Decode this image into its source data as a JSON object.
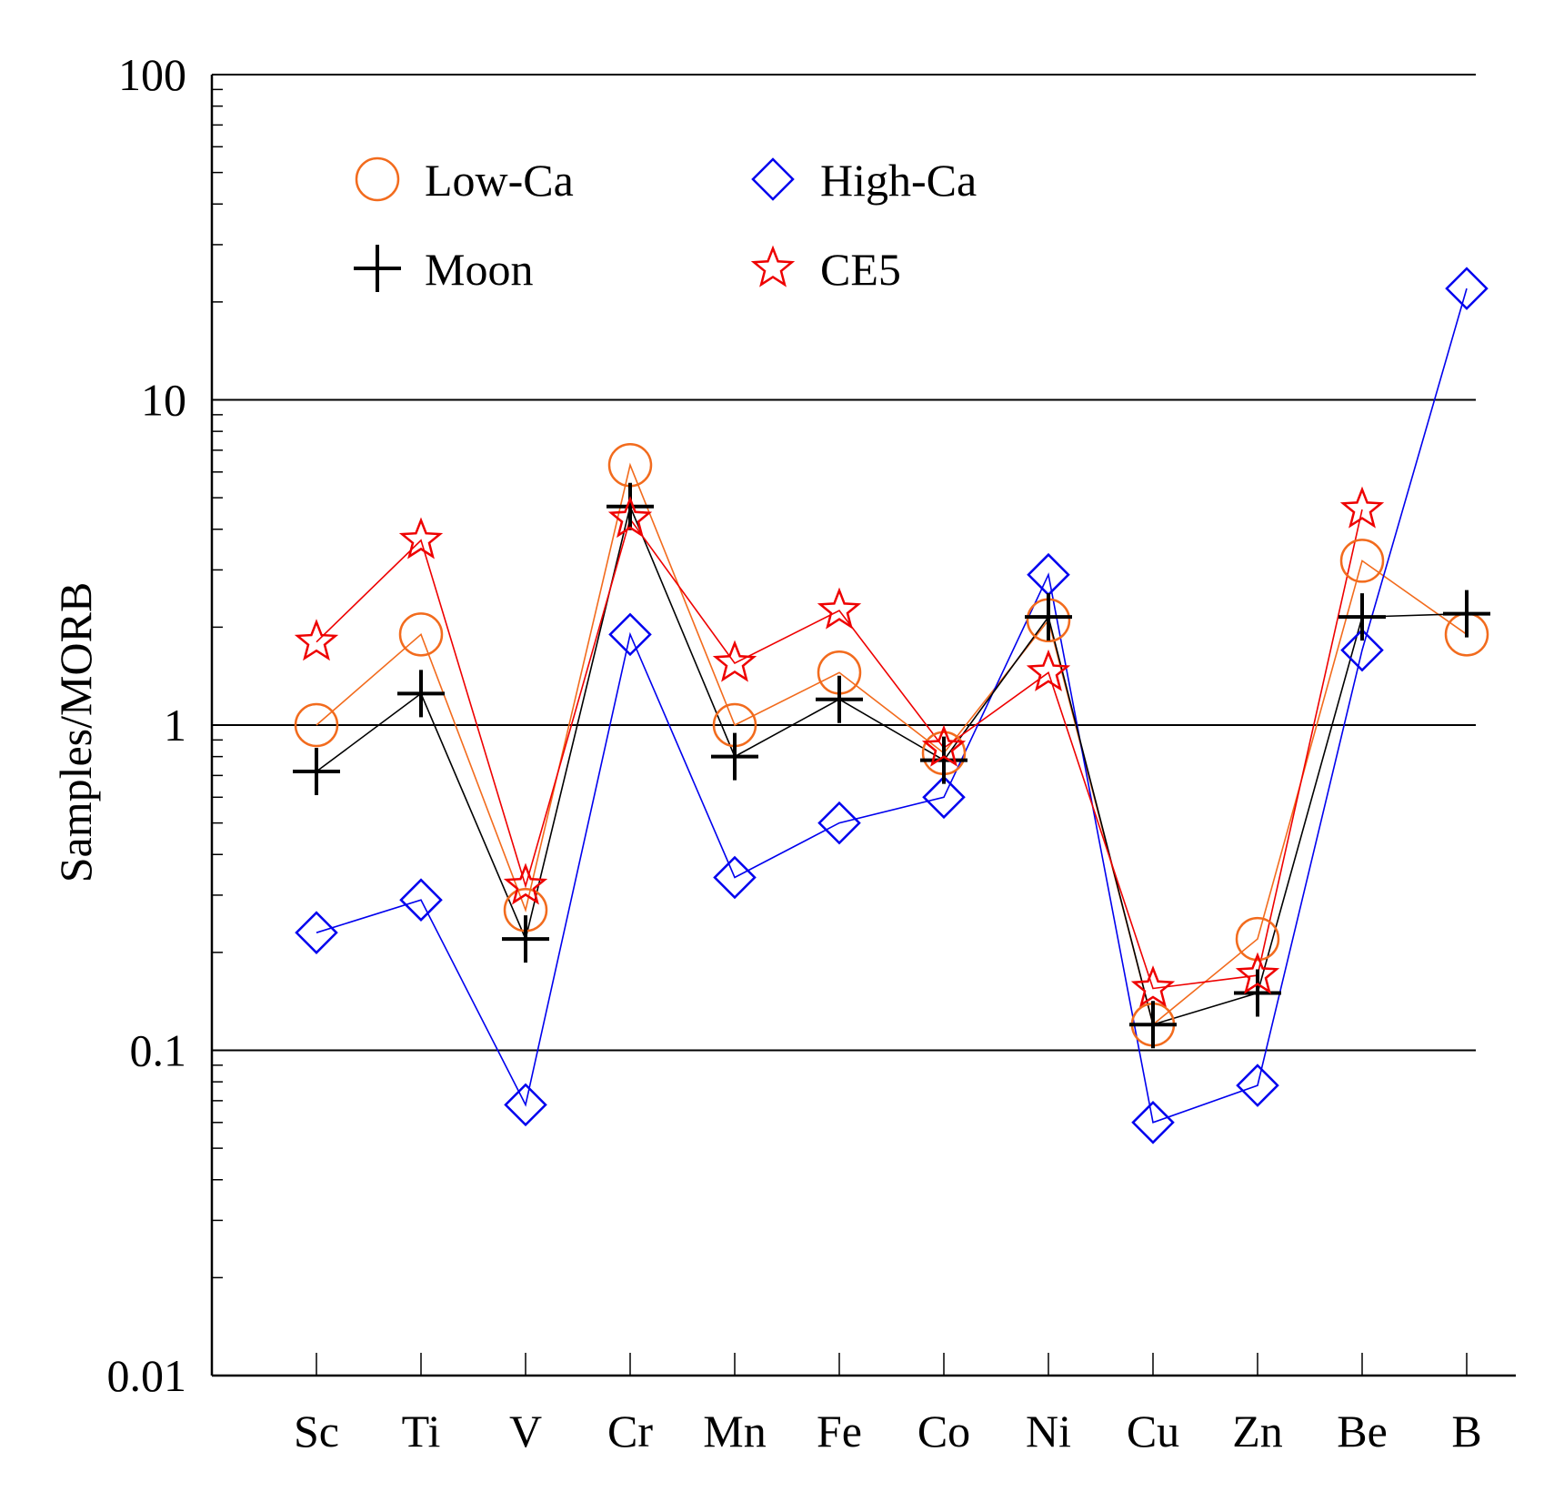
{
  "chart_data": {
    "type": "line",
    "title": "",
    "xlabel": "",
    "ylabel": "Samples/MORB",
    "y_scale": "log",
    "ylim": [
      0.01,
      100
    ],
    "y_ticks": [
      {
        "value": 0.01,
        "label": "0.01"
      },
      {
        "value": 0.1,
        "label": "0.1"
      },
      {
        "value": 1,
        "label": "1"
      },
      {
        "value": 10,
        "label": "10"
      },
      {
        "value": 100,
        "label": "100"
      }
    ],
    "grid": "horizontal at decades",
    "legend_position": "top-left",
    "categories": [
      "Sc",
      "Ti",
      "V",
      "Cr",
      "Mn",
      "Fe",
      "Co",
      "Ni",
      "Cu",
      "Zn",
      "Be",
      "B"
    ],
    "series": [
      {
        "name": "Low-Ca",
        "marker": "circle",
        "color": "#f26b1d",
        "values": [
          1.0,
          1.9,
          0.27,
          6.3,
          1.0,
          1.45,
          0.82,
          2.1,
          0.12,
          0.22,
          3.2,
          1.9
        ]
      },
      {
        "name": "High-Ca",
        "marker": "diamond",
        "color": "#0000ee",
        "values": [
          0.23,
          0.29,
          0.068,
          1.9,
          0.34,
          0.5,
          0.6,
          2.9,
          0.06,
          0.078,
          1.7,
          22
        ]
      },
      {
        "name": "Moon",
        "marker": "plus",
        "color": "#000000",
        "values": [
          0.72,
          1.25,
          0.22,
          4.7,
          0.8,
          1.2,
          0.78,
          2.15,
          0.12,
          0.15,
          2.15,
          2.2
        ]
      },
      {
        "name": "CE5",
        "marker": "star",
        "color": "#ee0000",
        "values": [
          1.8,
          3.7,
          0.32,
          4.3,
          1.55,
          2.25,
          0.85,
          1.45,
          0.155,
          0.17,
          4.6,
          null
        ]
      }
    ]
  }
}
